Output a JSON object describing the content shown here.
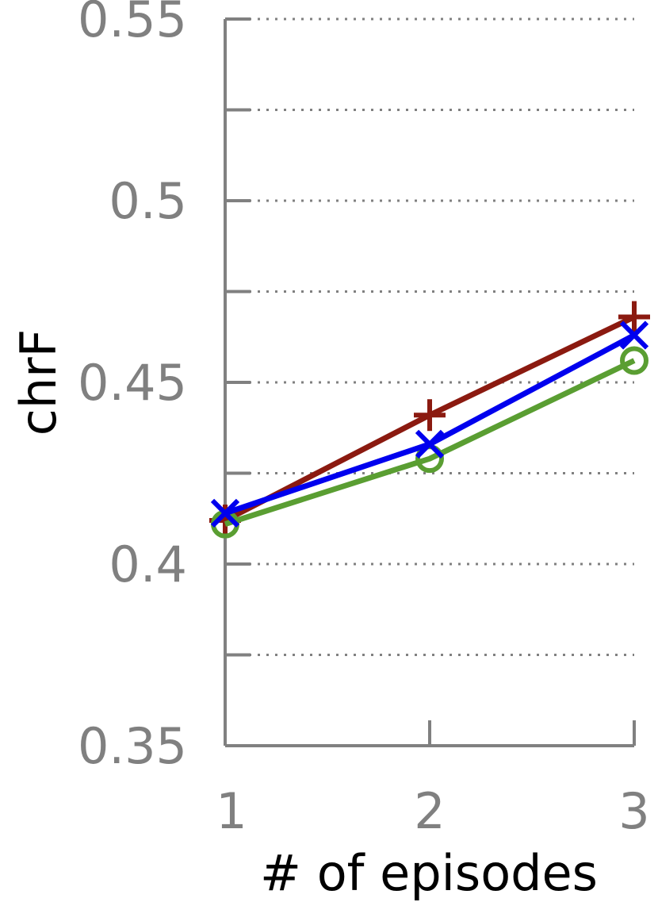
{
  "chart_data": {
    "type": "line",
    "title": "",
    "xlabel": "# of episodes",
    "ylabel": "chrF",
    "x": [
      1,
      2,
      3
    ],
    "xticks": [
      "1",
      "2",
      "3"
    ],
    "xlim": [
      1,
      3
    ],
    "ylim": [
      0.35,
      0.55
    ],
    "yticks": [
      0.35,
      0.4,
      0.45,
      0.5,
      0.55
    ],
    "ytick_labels": [
      "0.35",
      "0.4",
      "0.45",
      "0.5",
      "0.55"
    ],
    "minor_yticks": [
      0.375,
      0.425,
      0.475,
      0.525
    ],
    "grid": true,
    "legend": "none",
    "series": [
      {
        "marker": "plus",
        "color": "#8b1a10",
        "values": [
          0.412,
          0.441,
          0.468
        ]
      },
      {
        "marker": "circle",
        "color": "#5a9e32",
        "values": [
          0.411,
          0.429,
          0.456
        ]
      },
      {
        "marker": "x",
        "color": "#0000ee",
        "values": [
          0.414,
          0.433,
          0.463
        ]
      }
    ]
  }
}
